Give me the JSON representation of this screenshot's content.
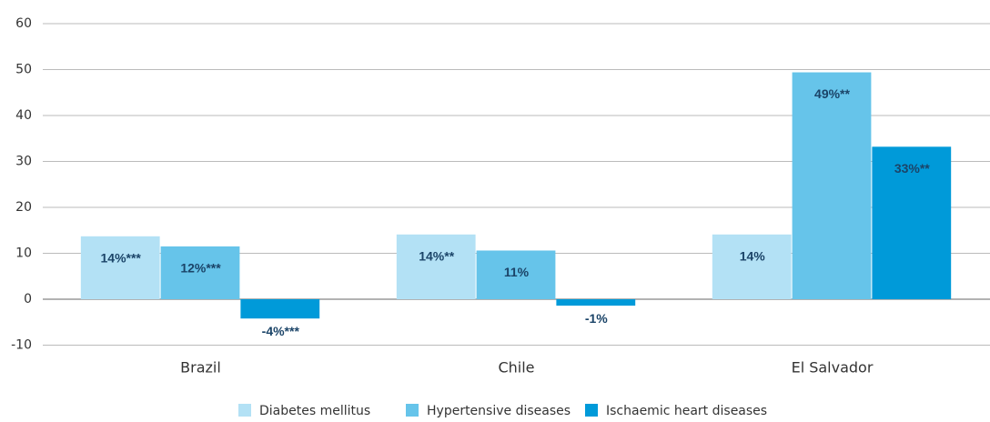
{
  "chart_data": {
    "type": "bar",
    "categories": [
      "Brazil",
      "Chile",
      "El Salvador"
    ],
    "series": [
      {
        "name": "Diabetes mellitus",
        "color": "#b3e1f5",
        "values": [
          13.7,
          14.1,
          14.1
        ],
        "value_labels": [
          "14%***",
          "14%**",
          "14%"
        ]
      },
      {
        "name": "Hypertensive diseases",
        "color": "#66c4ea",
        "values": [
          11.5,
          10.6,
          49.4
        ],
        "value_labels": [
          "12%***",
          "11%",
          "49%**"
        ]
      },
      {
        "name": "Ischaemic heart diseases",
        "color": "#009ad9",
        "values": [
          -4.2,
          -1.4,
          33.2
        ],
        "value_labels": [
          "-4%***",
          "-1%",
          "33%**"
        ]
      }
    ],
    "ylim": [
      -10,
      60
    ],
    "yticks": [
      -10,
      0,
      10,
      20,
      30,
      40,
      50,
      60
    ],
    "grid": true
  }
}
